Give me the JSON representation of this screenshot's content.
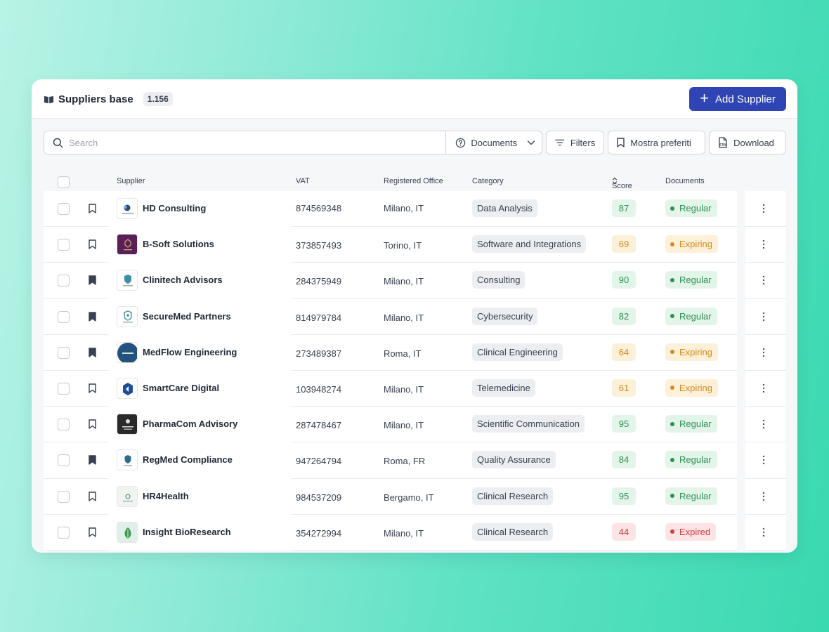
{
  "header": {
    "title": "Suppliers base",
    "count": "1.156",
    "add_label": "Add Supplier"
  },
  "toolbar": {
    "search_placeholder": "Search",
    "documents_label": "Documents",
    "filters_label": "Filters",
    "favorites_label": "Mostra preferiti",
    "download_label": "Download",
    "csv_icon_text": "CSV"
  },
  "columns": {
    "supplier": "Supplier",
    "vat": "VAT",
    "office": "Registered Office",
    "category": "Category",
    "score": "Score",
    "documents": "Documents"
  },
  "colors": {
    "accent": "#2f45b3",
    "regular_bg": "#e3f5e9",
    "regular_fg": "#2f8f52",
    "expiring_bg": "#fdf0d9",
    "expiring_fg": "#d38a1a",
    "expired_bg": "#fde4e4",
    "expired_fg": "#d23b3b"
  },
  "rows": [
    {
      "name": "HD Consulting",
      "vat": "874569348",
      "office": "Milano, IT",
      "category": "Data Analysis",
      "score": "87",
      "status": "Regular",
      "level": "regular",
      "bookmarked": false,
      "logo": "hd-consulting-logo"
    },
    {
      "name": "B-Soft Solutions",
      "vat": "373857493",
      "office": "Torino, IT",
      "category": "Software and Integrations",
      "score": "69",
      "status": "Expiring",
      "level": "expiring",
      "bookmarked": false,
      "logo": "b-soft-logo"
    },
    {
      "name": "Clinitech Advisors",
      "vat": "284375949",
      "office": "Milano, IT",
      "category": "Consulting",
      "score": "90",
      "status": "Regular",
      "level": "regular",
      "bookmarked": true,
      "logo": "clinitech-logo"
    },
    {
      "name": "SecureMed Partners",
      "vat": "814979784",
      "office": "Milano, IT",
      "category": "Cybersecurity",
      "score": "82",
      "status": "Regular",
      "level": "regular",
      "bookmarked": true,
      "logo": "securemed-logo"
    },
    {
      "name": "MedFlow Engineering",
      "vat": "273489387",
      "office": "Roma, IT",
      "category": "Clinical Engineering",
      "score": "64",
      "status": "Expiring",
      "level": "expiring",
      "bookmarked": true,
      "logo": "medflow-logo"
    },
    {
      "name": "SmartCare Digital",
      "vat": "103948274",
      "office": "Milano, IT",
      "category": "Telemedicine",
      "score": "61",
      "status": "Expiring",
      "level": "expiring",
      "bookmarked": false,
      "logo": "smartcare-logo"
    },
    {
      "name": "PharmaCom Advisory",
      "vat": "287478467",
      "office": "Milano, IT",
      "category": "Scientific Communication",
      "score": "95",
      "status": "Regular",
      "level": "regular",
      "bookmarked": false,
      "logo": "pharmacom-logo"
    },
    {
      "name": "RegMed Compliance",
      "vat": "947264794",
      "office": "Roma, FR",
      "category": "Quality Assurance",
      "score": "84",
      "status": "Regular",
      "level": "regular",
      "bookmarked": true,
      "logo": "regmed-logo"
    },
    {
      "name": "HR4Health",
      "vat": "984537209",
      "office": "Bergamo, IT",
      "category": "Clinical Research",
      "score": "95",
      "status": "Regular",
      "level": "regular",
      "bookmarked": false,
      "logo": "hr4health-logo"
    },
    {
      "name": "Insight BioResearch",
      "vat": "354272994",
      "office": "Milano, IT",
      "category": "Clinical Research",
      "score": "44",
      "status": "Expired",
      "level": "expired",
      "bookmarked": false,
      "logo": "insight-bioresearch-logo"
    }
  ]
}
